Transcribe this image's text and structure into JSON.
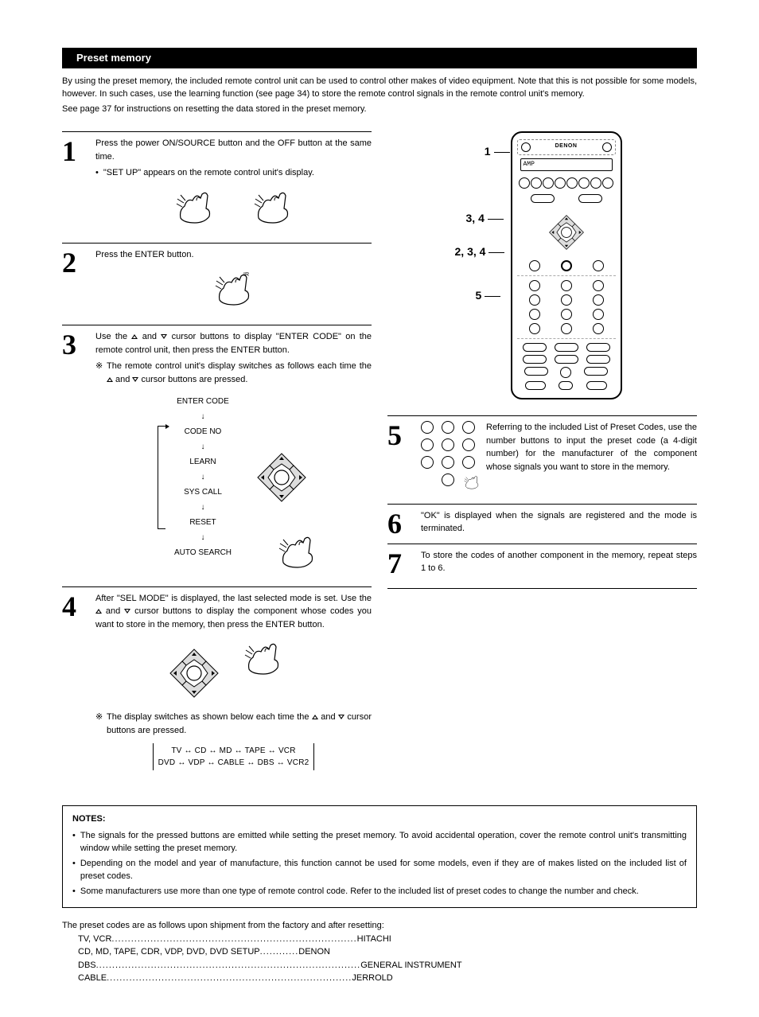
{
  "section_title": "Preset memory",
  "intro": {
    "p1": "By using the preset memory, the included remote control unit can be used to control other makes of video equipment.  Note that this is not possible for some models, however.  In such cases, use the learning function (see page 34) to store the remote control signals in the remote control unit's memory.",
    "p2": "See page 37 for instructions on resetting the data stored in the preset memory."
  },
  "steps": {
    "s1": {
      "num": "1",
      "text": "Press the power ON/SOURCE button and the OFF button at the same time.",
      "bullet": "\"SET UP\" appears on the remote control unit's display."
    },
    "s2": {
      "num": "2",
      "text": "Press the ENTER button."
    },
    "s3": {
      "num": "3",
      "text_pre": "Use the ",
      "text_mid": " and ",
      "text_post": " cursor buttons to display \"ENTER CODE\" on the remote control unit, then press the ENTER button.",
      "note_pre": "The remote control unit's display switches as follows each time the ",
      "note_mid": " and ",
      "note_post": " cursor buttons are pressed.",
      "flow": [
        "ENTER CODE",
        "CODE NO",
        "LEARN",
        "SYS CALL",
        "RESET",
        "AUTO SEARCH"
      ]
    },
    "s4": {
      "num": "4",
      "text_pre": "After \"SEL MODE\" is displayed, the last selected mode is set. Use the ",
      "text_mid": " and ",
      "text_post": " cursor buttons to display the component whose codes you want to store in the memory, then press the ENTER button.",
      "note_pre": "The display switches as shown below each time the  ",
      "note_mid": " and ",
      "note_post": " cursor buttons are pressed.",
      "cycle1": "TV ↔ CD ↔ MD ↔ TAPE ↔ VCR",
      "cycle2": "DVD ↔ VDP ↔ CABLE ↔ DBS ↔ VCR2"
    },
    "s5": {
      "num": "5",
      "text": "Referring to the included List of Preset Codes, use the number buttons to input the preset code (a 4-digit number) for the manufacturer of the component whose signals you want to store in the memory."
    },
    "s6": {
      "num": "6",
      "text": "\"OK\" is displayed when the signals are registered and the mode is terminated."
    },
    "s7": {
      "num": "7",
      "text": "To store the codes of another component in the memory, repeat steps 1 to 6."
    }
  },
  "remote": {
    "brand": "DENON",
    "display": "AMP",
    "callouts": {
      "c1": "1",
      "c2": "3, 4",
      "c3": "2, 3, 4",
      "c4": "5"
    }
  },
  "notes": {
    "title": "NOTES:",
    "n1": "The signals for the pressed buttons are emitted while setting the preset memory. To avoid accidental operation, cover the remote control unit's transmitting window while setting the preset memory.",
    "n2": "Depending on the model and year of manufacture, this function cannot be used for some models, even if they are of makes listed on the included list of preset codes.",
    "n3": "Some manufacturers use more than one type of remote control code.  Refer to the included list of preset codes to change the number and check."
  },
  "factory": {
    "intro": "The preset codes are as follows upon shipment from the factory and after resetting:",
    "rows": [
      {
        "label": "TV, VCR",
        "dots": "............................................................................",
        "value": "HITACHI"
      },
      {
        "label": "CD, MD, TAPE, CDR, VDP, DVD, DVD SETUP",
        "dots": "............",
        "value": "DENON"
      },
      {
        "label": "DBS",
        "dots": "..................................................................................",
        "value": "GENERAL INSTRUMENT"
      },
      {
        "label": "CABLE",
        "dots": "............................................................................",
        "value": "JERROLD"
      }
    ]
  }
}
